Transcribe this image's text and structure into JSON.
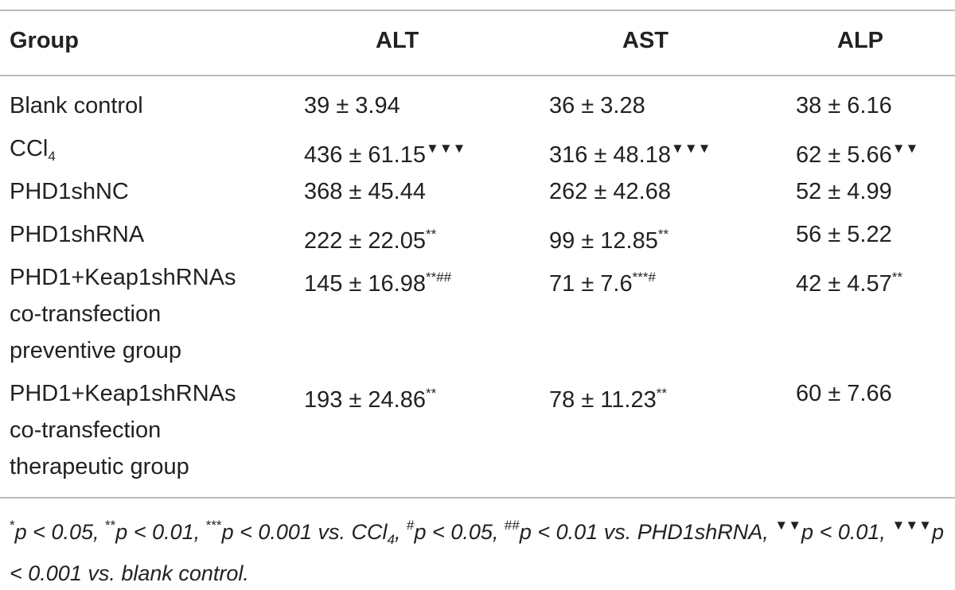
{
  "table": {
    "header": [
      "Group",
      "ALT",
      "AST",
      "ALP"
    ],
    "rows": [
      {
        "group": [
          [
            {
              "text": "Blank control"
            }
          ]
        ],
        "values": [
          [
            {
              "text": "39 ± 3.94"
            }
          ],
          [
            {
              "text": "36 ± 3.28"
            }
          ],
          [
            {
              "text": "38 ± 6.16"
            }
          ]
        ]
      },
      {
        "group": [
          [
            {
              "text": "CCl"
            },
            {
              "text": "4",
              "format": "sub"
            }
          ]
        ],
        "values": [
          [
            {
              "text": "436 ± 61.15"
            },
            {
              "text": "▼▼▼",
              "format": "sup"
            }
          ],
          [
            {
              "text": "316 ± 48.18"
            },
            {
              "text": "▼▼▼",
              "format": "sup"
            }
          ],
          [
            {
              "text": "62 ± 5.66"
            },
            {
              "text": "▼▼",
              "format": "sup"
            }
          ]
        ]
      },
      {
        "group": [
          [
            {
              "text": "PHD1shNC"
            }
          ]
        ],
        "values": [
          [
            {
              "text": "368 ± 45.44"
            }
          ],
          [
            {
              "text": "262 ± 42.68"
            }
          ],
          [
            {
              "text": "52 ± 4.99"
            }
          ]
        ]
      },
      {
        "group": [
          [
            {
              "text": "PHD1shRNA"
            }
          ]
        ],
        "values": [
          [
            {
              "text": "222 ± 22.05"
            },
            {
              "text": "**",
              "format": "sup"
            }
          ],
          [
            {
              "text": "99 ± 12.85"
            },
            {
              "text": "**",
              "format": "sup"
            }
          ],
          [
            {
              "text": "56 ± 5.22"
            }
          ]
        ]
      },
      {
        "group": [
          [
            {
              "text": "PHD1+Keap1shRNAs"
            }
          ],
          [
            {
              "text": "co-transfection"
            }
          ],
          [
            {
              "text": "preventive group"
            }
          ]
        ],
        "values": [
          [
            {
              "text": "145 ± 16.98"
            },
            {
              "text": "**##",
              "format": "sup"
            }
          ],
          [
            {
              "text": "71 ± 7.6"
            },
            {
              "text": "***#",
              "format": "sup"
            }
          ],
          [
            {
              "text": "42 ± 4.57"
            },
            {
              "text": "**",
              "format": "sup"
            }
          ]
        ]
      },
      {
        "group": [
          [
            {
              "text": "PHD1+Keap1shRNAs"
            }
          ],
          [
            {
              "text": "co-transfection"
            }
          ],
          [
            {
              "text": "therapeutic group"
            }
          ]
        ],
        "values": [
          [
            {
              "text": "193 ± 24.86"
            },
            {
              "text": "**",
              "format": "sup"
            }
          ],
          [
            {
              "text": "78 ± 11.23"
            },
            {
              "text": "**",
              "format": "sup"
            }
          ],
          [
            {
              "text": "60 ± 7.66"
            }
          ]
        ]
      }
    ]
  },
  "footnote": [
    {
      "text": "*",
      "format": "sup"
    },
    {
      "text": "p < 0.05, "
    },
    {
      "text": "**",
      "format": "sup"
    },
    {
      "text": "p < 0.01, "
    },
    {
      "text": "***",
      "format": "sup"
    },
    {
      "text": "p < 0.001 vs. CCl"
    },
    {
      "text": "4",
      "format": "sub"
    },
    {
      "text": ", "
    },
    {
      "text": "#",
      "format": "sup"
    },
    {
      "text": "p < 0.05, "
    },
    {
      "text": "##",
      "format": "sup"
    },
    {
      "text": "p < 0.01 vs. PHD1shRNA, "
    },
    {
      "text": "▼▼",
      "format": "sup"
    },
    {
      "text": "p < 0.01, "
    },
    {
      "text": "▼▼▼",
      "format": "sup"
    },
    {
      "text": "p < 0.001 vs. blank control."
    }
  ]
}
